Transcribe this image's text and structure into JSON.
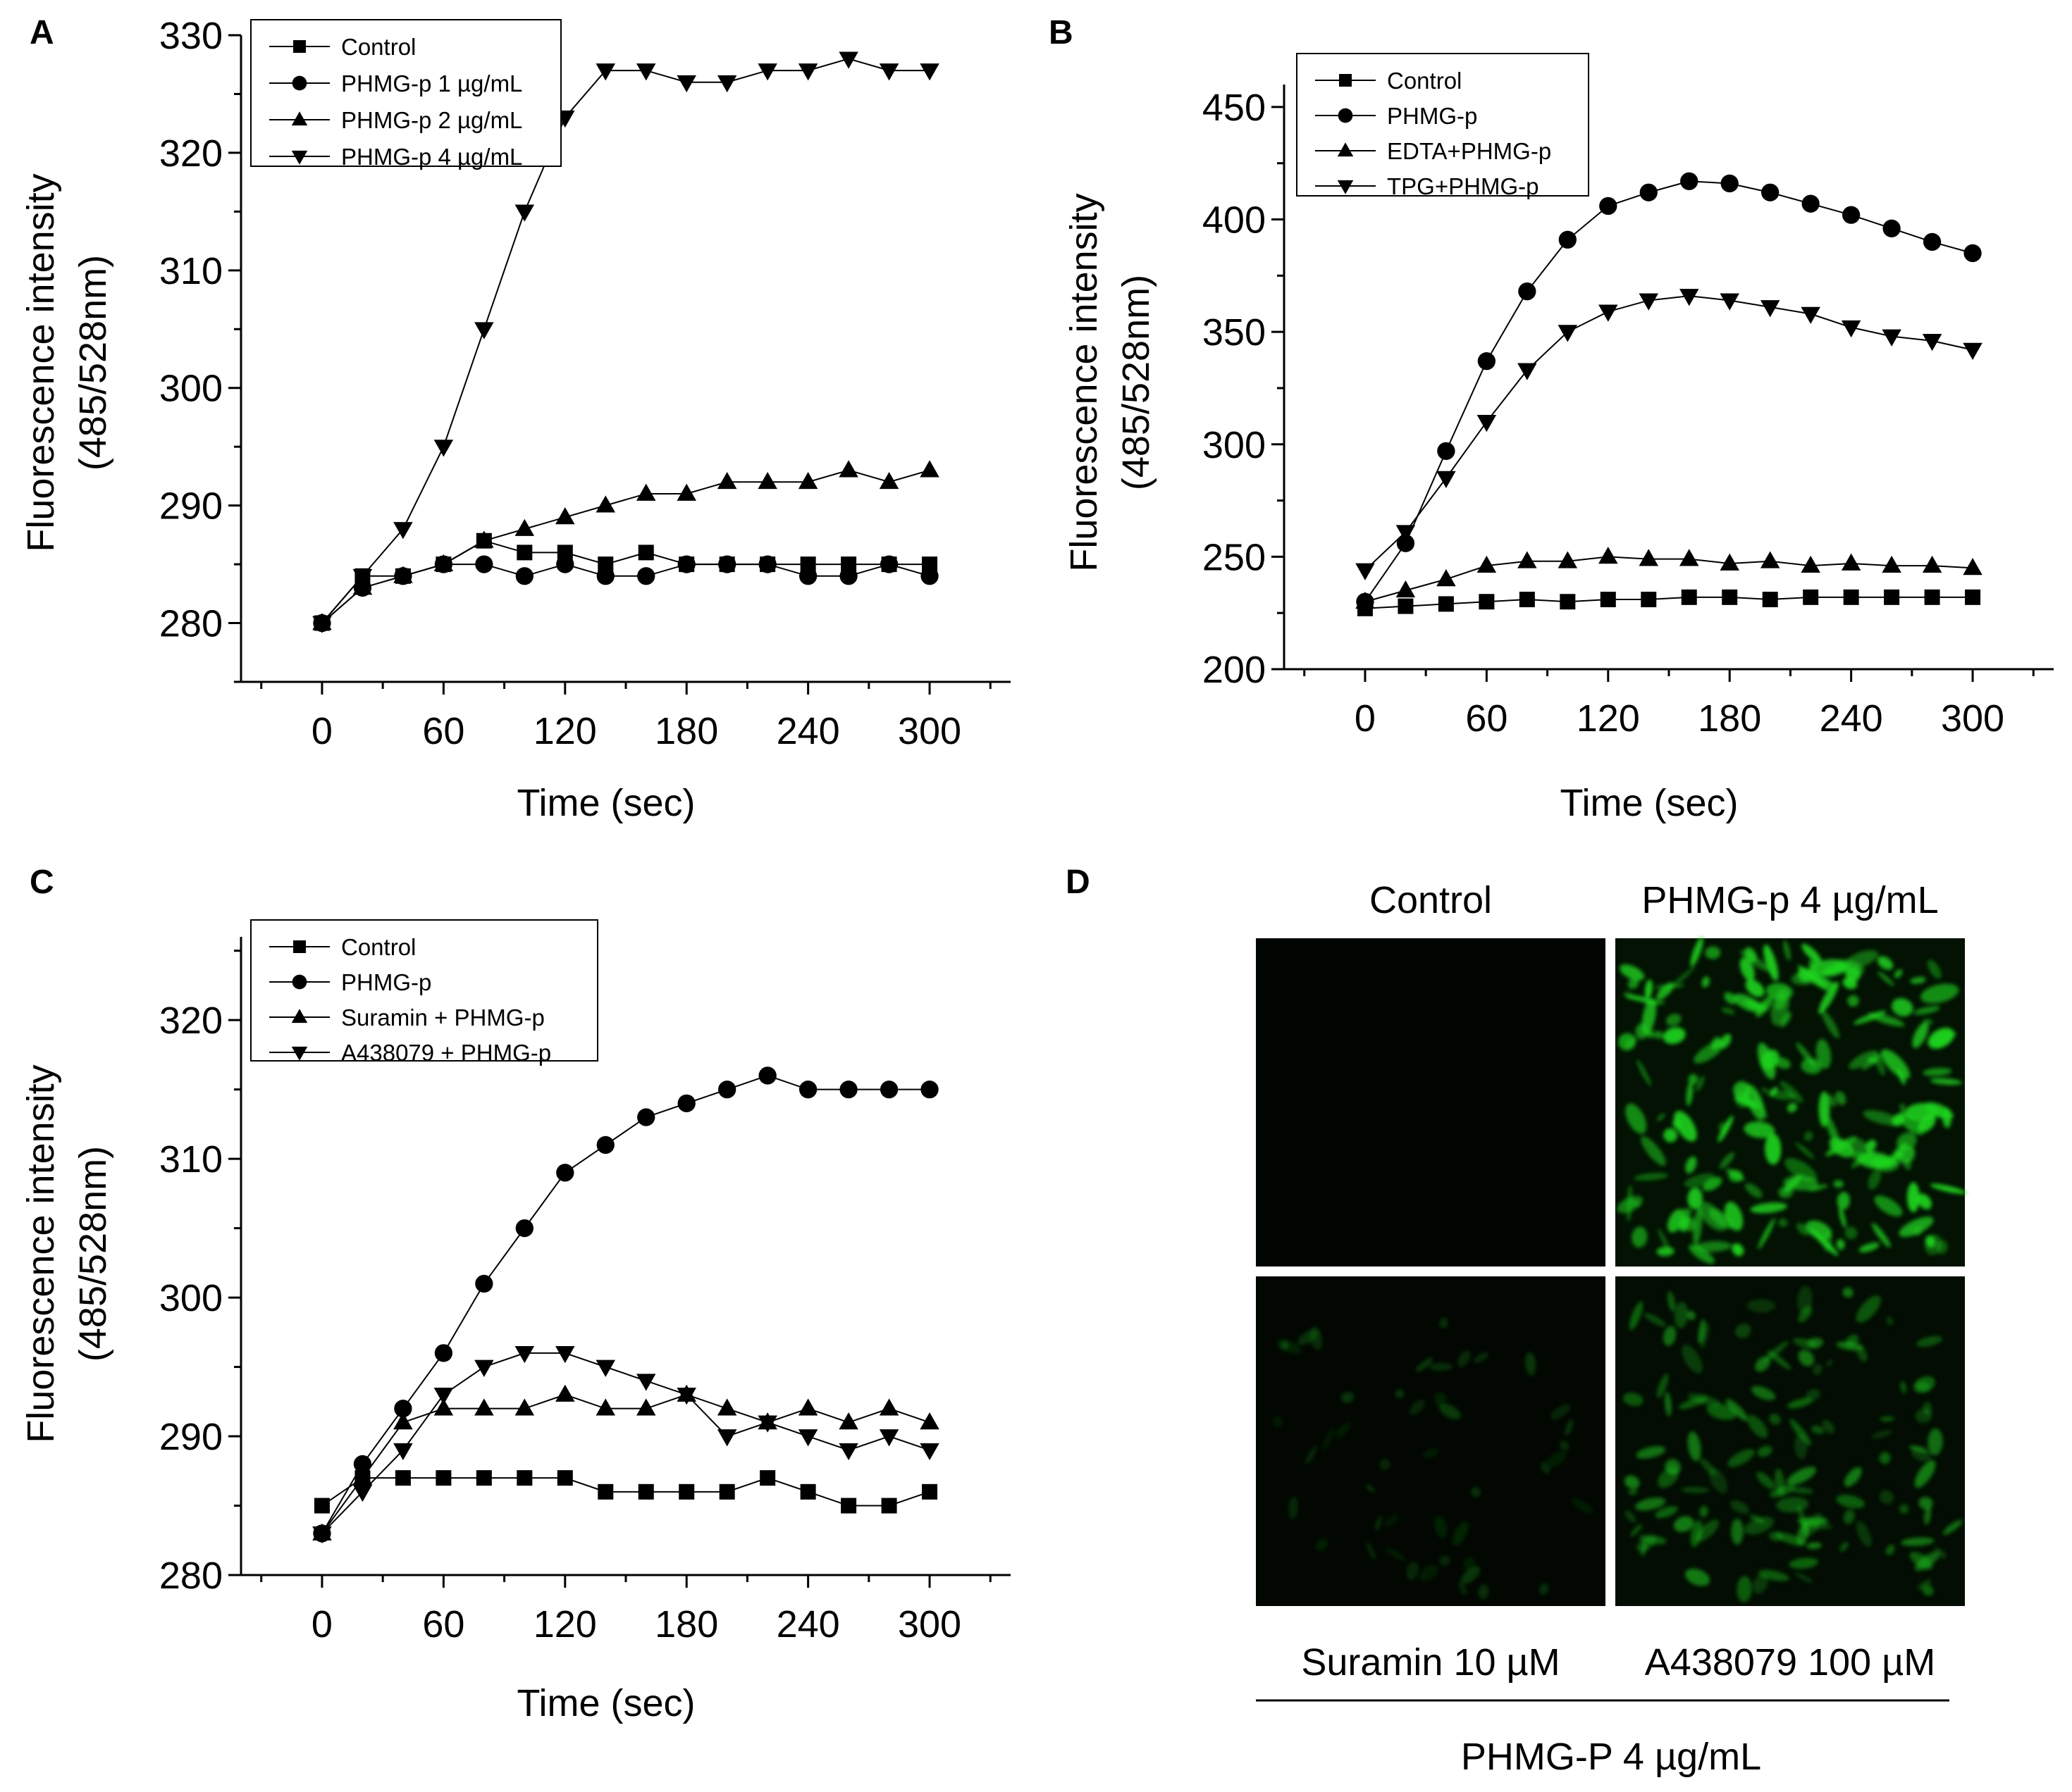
{
  "chart_data": [
    {
      "panel": "A",
      "type": "line",
      "xlabel": "Time (sec)",
      "ylabel_line1": "Fluorescence intensity",
      "ylabel_line2": "(485/528nm)",
      "xlim": [
        -40,
        340
      ],
      "ylim": [
        275,
        330
      ],
      "xticks": [
        0,
        60,
        120,
        180,
        240,
        300
      ],
      "yticks": [
        280,
        290,
        300,
        310,
        320,
        330
      ],
      "x": [
        0,
        20,
        40,
        60,
        80,
        100,
        120,
        140,
        160,
        180,
        200,
        220,
        240,
        260,
        280,
        300
      ],
      "series": [
        {
          "name": "Control",
          "marker": "square",
          "values": [
            280,
            284,
            284,
            285,
            287,
            286,
            286,
            285,
            286,
            285,
            285,
            285,
            285,
            285,
            285,
            285
          ]
        },
        {
          "name": "PHMG-p 1 µg/mL",
          "marker": "circle",
          "values": [
            280,
            283,
            284,
            285,
            285,
            284,
            285,
            284,
            284,
            285,
            285,
            285,
            284,
            284,
            285,
            284
          ]
        },
        {
          "name": "PHMG-p 2 µg/mL",
          "marker": "triangle-up",
          "values": [
            280,
            283,
            284,
            285,
            287,
            288,
            289,
            290,
            291,
            291,
            292,
            292,
            292,
            293,
            292,
            293
          ]
        },
        {
          "name": "PHMG-p 4 µg/mL",
          "marker": "triangle-down",
          "values": [
            280,
            284,
            288,
            295,
            305,
            315,
            323,
            327,
            327,
            326,
            326,
            327,
            327,
            328,
            327,
            327
          ]
        }
      ]
    },
    {
      "panel": "B",
      "type": "line",
      "xlabel": "Time (sec)",
      "ylabel_line1": "Fluorescence intensity",
      "ylabel_line2": "(485/528nm)",
      "xlim": [
        -40,
        340
      ],
      "ylim": [
        200,
        460
      ],
      "xticks": [
        0,
        60,
        120,
        180,
        240,
        300
      ],
      "yticks": [
        200,
        250,
        300,
        350,
        400,
        450
      ],
      "x": [
        0,
        20,
        40,
        60,
        80,
        100,
        120,
        140,
        160,
        180,
        200,
        220,
        240,
        260,
        280,
        300
      ],
      "series": [
        {
          "name": "Control",
          "marker": "square",
          "values": [
            227,
            228,
            229,
            230,
            231,
            230,
            231,
            231,
            232,
            232,
            231,
            232,
            232,
            232,
            232,
            232
          ]
        },
        {
          "name": "PHMG-p",
          "marker": "circle",
          "values": [
            230,
            256,
            297,
            337,
            368,
            391,
            406,
            412,
            417,
            416,
            412,
            407,
            402,
            396,
            390,
            385
          ]
        },
        {
          "name": "EDTA+PHMG-p",
          "marker": "triangle-up",
          "values": [
            230,
            235,
            240,
            246,
            248,
            248,
            250,
            249,
            249,
            247,
            248,
            246,
            247,
            246,
            246,
            245
          ]
        },
        {
          "name": "TPG+PHMG-p",
          "marker": "triangle-down",
          "values": [
            244,
            261,
            285,
            310,
            333,
            350,
            359,
            364,
            366,
            364,
            361,
            358,
            352,
            348,
            346,
            342
          ]
        }
      ]
    },
    {
      "panel": "C",
      "type": "line",
      "xlabel": "Time (sec)",
      "ylabel_line1": "Fluorescence intensity",
      "ylabel_line2": "(485/528nm)",
      "xlim": [
        -40,
        340
      ],
      "ylim": [
        280,
        326
      ],
      "xticks": [
        0,
        60,
        120,
        180,
        240,
        300
      ],
      "yticks": [
        280,
        290,
        300,
        310,
        320
      ],
      "x": [
        0,
        20,
        40,
        60,
        80,
        100,
        120,
        140,
        160,
        180,
        200,
        220,
        240,
        260,
        280,
        300
      ],
      "series": [
        {
          "name": "Control",
          "marker": "square",
          "values": [
            285,
            287,
            287,
            287,
            287,
            287,
            287,
            286,
            286,
            286,
            286,
            287,
            286,
            285,
            285,
            286
          ]
        },
        {
          "name": "PHMG-p",
          "marker": "circle",
          "values": [
            283,
            288,
            292,
            296,
            301,
            305,
            309,
            311,
            313,
            314,
            315,
            316,
            315,
            315,
            315,
            315
          ]
        },
        {
          "name": "Suramin + PHMG-p",
          "marker": "triangle-up",
          "values": [
            283,
            287,
            291,
            292,
            292,
            292,
            293,
            292,
            292,
            293,
            292,
            291,
            292,
            291,
            292,
            291
          ]
        },
        {
          "name": "A438079 + PHMG-p",
          "marker": "triangle-down",
          "values": [
            283,
            286,
            289,
            293,
            295,
            296,
            296,
            295,
            294,
            293,
            290,
            291,
            290,
            289,
            290,
            289
          ]
        }
      ]
    }
  ],
  "panels": {
    "a": {
      "letter": "A"
    },
    "b": {
      "letter": "B"
    },
    "c": {
      "letter": "C"
    },
    "d": {
      "letter": "D",
      "col_top_left": "Control",
      "col_top_right": "PHMG-p 4 µg/mL",
      "col_bottom_left": "Suramin 10 µM",
      "col_bottom_right": "A438079 100 µM",
      "group_label": "PHMG-P 4 µg/mL",
      "image_color": "#1fd41f",
      "image_background": "#020602"
    }
  },
  "colors": {
    "line": "#000000",
    "marker": "#000000"
  }
}
